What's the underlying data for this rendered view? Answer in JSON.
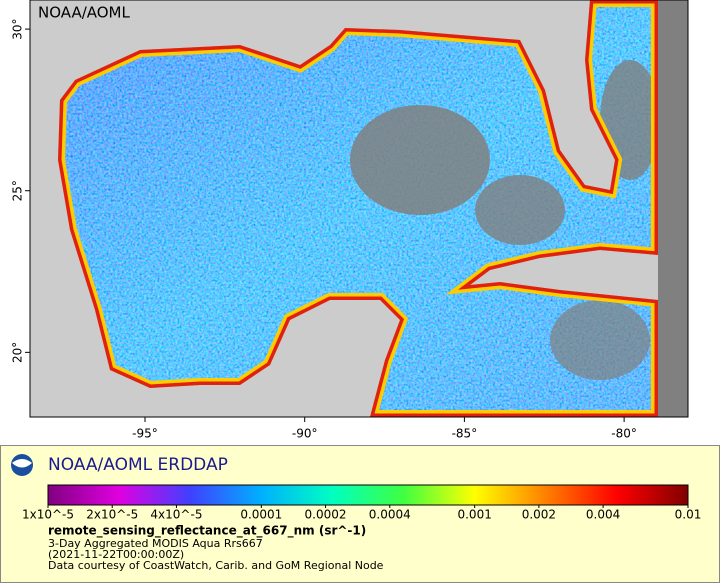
{
  "map": {
    "label": "NOAA/AOML",
    "lon_range": [
      -98.6,
      -78.0
    ],
    "lat_range": [
      18.0,
      30.9
    ],
    "lon_ticks": [
      {
        "value": -95,
        "label": "-95°"
      },
      {
        "value": -90,
        "label": "-90°"
      },
      {
        "value": -85,
        "label": "-85°"
      },
      {
        "value": -80,
        "label": "-80°"
      }
    ],
    "lat_ticks": [
      {
        "value": 20,
        "label": "20°"
      },
      {
        "value": 25,
        "label": "25°"
      },
      {
        "value": 30,
        "label": "30°"
      }
    ]
  },
  "legend": {
    "title": "NOAA/AOML ERDDAP",
    "colorbar": {
      "scale": "log",
      "range": [
        1e-05,
        0.01
      ],
      "colors": [
        "#800080",
        "#e000e0",
        "#4040ff",
        "#00b0ff",
        "#00ffc0",
        "#40ff40",
        "#ffff00",
        "#ff8000",
        "#ff0000",
        "#800000"
      ],
      "ticks": [
        {
          "value": 1e-05,
          "label": "1x10^-5"
        },
        {
          "value": 2e-05,
          "label": "2x10^-5"
        },
        {
          "value": 4e-05,
          "label": "4x10^-5"
        },
        {
          "value": 0.0001,
          "label": "0.0001"
        },
        {
          "value": 0.0002,
          "label": "0.0002"
        },
        {
          "value": 0.0004,
          "label": "0.0004"
        },
        {
          "value": 0.001,
          "label": "0.001"
        },
        {
          "value": 0.002,
          "label": "0.002"
        },
        {
          "value": 0.004,
          "label": "0.004"
        },
        {
          "value": 0.01,
          "label": "0.01"
        }
      ]
    },
    "variable": "remote_sensing_reflectance_at_667_nm (sr^-1)",
    "lines": [
      "3-Day Aggregated MODIS Aqua Rrs667",
      "(2021-11-22T00:00:00Z)",
      "Data courtesy of CoastWatch, Carib. and GoM Regional Node"
    ]
  }
}
